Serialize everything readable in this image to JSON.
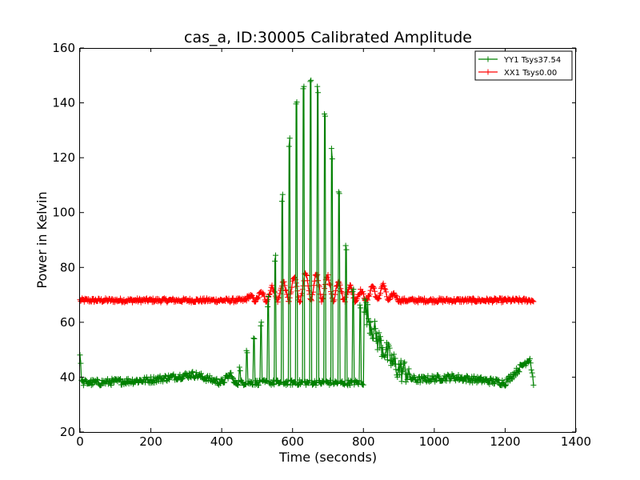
{
  "chart_data": {
    "type": "line",
    "title": "cas_a, ID:30005 Calibrated Amplitude",
    "xlabel": "Time (seconds)",
    "ylabel": "Power in Kelvin",
    "xlim": [
      0,
      1400
    ],
    "ylim": [
      20,
      160
    ],
    "xticks": [
      0,
      200,
      400,
      600,
      800,
      1000,
      1200,
      1400
    ],
    "yticks": [
      20,
      40,
      60,
      80,
      100,
      120,
      140,
      160
    ],
    "grid": false,
    "legend_position": "top-right",
    "marker": "+",
    "x_range_data": [
      0,
      1280
    ],
    "series": [
      {
        "name": "YY1 Tsys37.54",
        "color": "#008000",
        "baseline": 38,
        "points_estimated": [
          [
            0,
            48
          ],
          [
            5,
            38
          ],
          [
            50,
            38
          ],
          [
            200,
            39
          ],
          [
            260,
            40
          ],
          [
            320,
            41
          ],
          [
            400,
            38
          ],
          [
            450,
            44
          ],
          [
            470,
            50
          ],
          [
            490,
            55
          ],
          [
            510,
            60
          ],
          [
            530,
            68
          ],
          [
            550,
            84
          ],
          [
            570,
            107
          ],
          [
            585,
            122
          ],
          [
            600,
            137
          ],
          [
            620,
            145
          ],
          [
            645,
            150
          ],
          [
            660,
            149
          ],
          [
            680,
            143
          ],
          [
            700,
            132
          ],
          [
            720,
            116
          ],
          [
            740,
            104
          ],
          [
            755,
            84
          ],
          [
            770,
            74
          ],
          [
            785,
            69
          ],
          [
            800,
            65
          ],
          [
            820,
            58
          ],
          [
            840,
            52
          ],
          [
            860,
            48
          ],
          [
            880,
            44
          ],
          [
            900,
            41
          ],
          [
            950,
            39
          ],
          [
            1050,
            40
          ],
          [
            1200,
            38
          ],
          [
            1270,
            47
          ],
          [
            1280,
            38
          ]
        ]
      },
      {
        "name": "XX1 Tsys0.00",
        "color": "#ff0000",
        "baseline": 68,
        "points_estimated": [
          [
            0,
            68
          ],
          [
            100,
            68
          ],
          [
            170,
            69
          ],
          [
            260,
            69
          ],
          [
            320,
            70
          ],
          [
            400,
            68
          ],
          [
            500,
            70
          ],
          [
            560,
            74
          ],
          [
            600,
            76
          ],
          [
            650,
            78
          ],
          [
            700,
            77
          ],
          [
            750,
            74
          ],
          [
            800,
            71
          ],
          [
            845,
            75
          ],
          [
            870,
            72
          ],
          [
            900,
            69
          ],
          [
            950,
            68
          ],
          [
            1100,
            68
          ],
          [
            1280,
            68
          ]
        ]
      }
    ]
  }
}
